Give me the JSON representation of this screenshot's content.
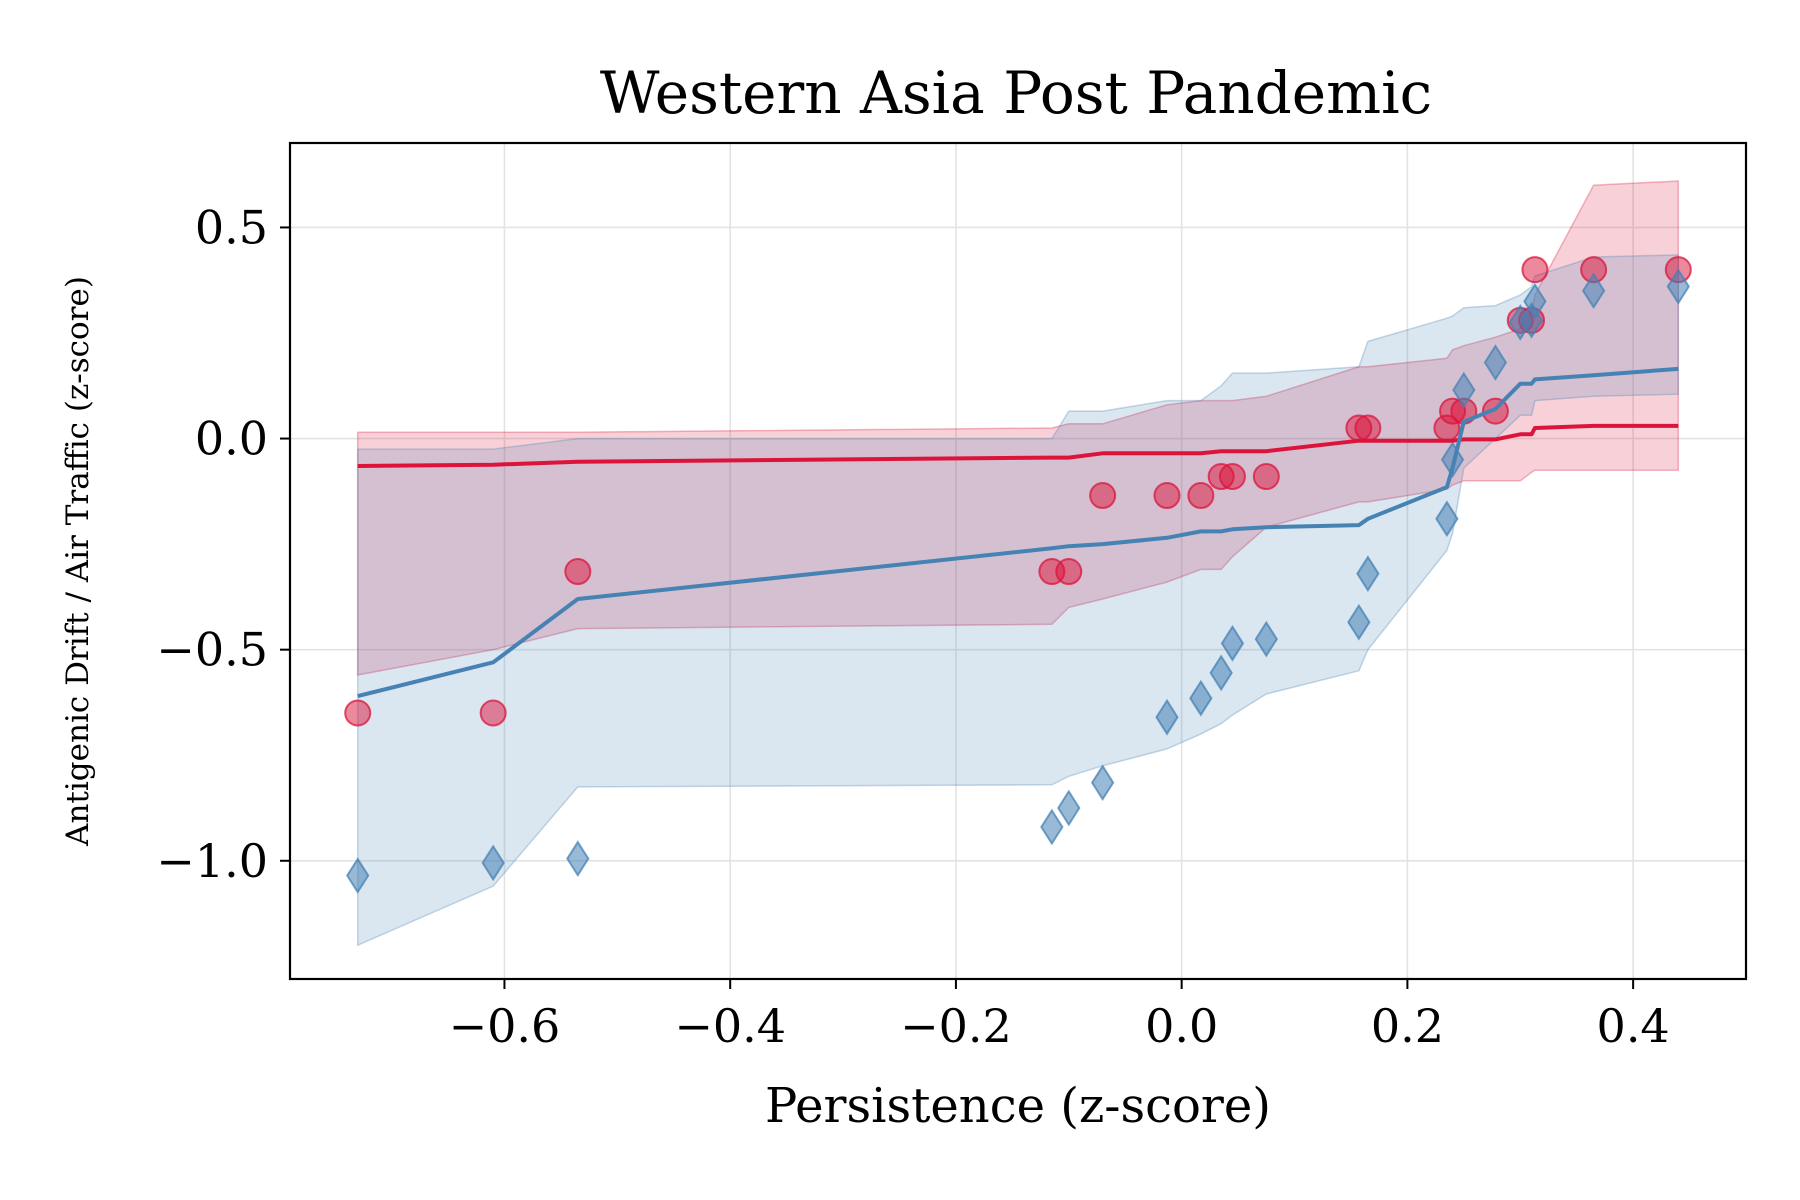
{
  "chart_data": {
    "type": "scatter",
    "title": "Western Asia Post Pandemic",
    "xlabel": "Persistence (z-score)",
    "ylabel": "Antigenic Drift / Air Traffic (z-score)",
    "xlim": [
      -0.79,
      0.5
    ],
    "ylim": [
      -1.28,
      0.7
    ],
    "xticks": [
      -0.6,
      -0.4,
      -0.2,
      0.0,
      0.2,
      0.4
    ],
    "xtick_labels": [
      "−0.6",
      "−0.4",
      "−0.2",
      "0.0",
      "0.2",
      "0.4"
    ],
    "yticks": [
      0.5,
      0.0,
      -0.5,
      -1.0
    ],
    "ytick_labels": [
      "0.5",
      "0.0",
      "−0.5",
      "−1.0"
    ],
    "grid": true,
    "series": [
      {
        "color": "#dc143c",
        "marker": "circle",
        "points": [
          [
            -0.73,
            -0.65
          ],
          [
            -0.61,
            -0.65
          ],
          [
            -0.535,
            -0.315
          ],
          [
            -0.115,
            -0.315
          ],
          [
            -0.1,
            -0.315
          ],
          [
            -0.07,
            -0.135
          ],
          [
            -0.013,
            -0.135
          ],
          [
            0.017,
            -0.135
          ],
          [
            0.035,
            -0.09
          ],
          [
            0.045,
            -0.09
          ],
          [
            0.075,
            -0.09
          ],
          [
            0.157,
            0.025
          ],
          [
            0.165,
            0.025
          ],
          [
            0.235,
            0.025
          ],
          [
            0.24,
            0.065
          ],
          [
            0.25,
            0.065
          ],
          [
            0.278,
            0.065
          ],
          [
            0.3,
            0.28
          ],
          [
            0.31,
            0.28
          ],
          [
            0.313,
            0.4
          ],
          [
            0.365,
            0.4
          ],
          [
            0.44,
            0.4
          ]
        ],
        "fit": [
          [
            -0.73,
            -0.065
          ],
          [
            -0.61,
            -0.062
          ],
          [
            -0.535,
            -0.055
          ],
          [
            -0.115,
            -0.045
          ],
          [
            -0.1,
            -0.045
          ],
          [
            -0.07,
            -0.035
          ],
          [
            -0.013,
            -0.035
          ],
          [
            0.017,
            -0.035
          ],
          [
            0.035,
            -0.03
          ],
          [
            0.045,
            -0.03
          ],
          [
            0.075,
            -0.03
          ],
          [
            0.157,
            -0.005
          ],
          [
            0.165,
            -0.005
          ],
          [
            0.235,
            -0.005
          ],
          [
            0.24,
            -0.005
          ],
          [
            0.25,
            -0.002
          ],
          [
            0.278,
            -0.002
          ],
          [
            0.3,
            0.01
          ],
          [
            0.31,
            0.01
          ],
          [
            0.313,
            0.025
          ],
          [
            0.365,
            0.03
          ],
          [
            0.44,
            0.03
          ]
        ],
        "band_upper": [
          [
            -0.73,
            0.015
          ],
          [
            -0.61,
            0.015
          ],
          [
            -0.535,
            0.015
          ],
          [
            -0.115,
            0.025
          ],
          [
            -0.1,
            0.035
          ],
          [
            -0.07,
            0.035
          ],
          [
            -0.013,
            0.08
          ],
          [
            0.017,
            0.09
          ],
          [
            0.035,
            0.09
          ],
          [
            0.045,
            0.09
          ],
          [
            0.075,
            0.1
          ],
          [
            0.157,
            0.17
          ],
          [
            0.165,
            0.17
          ],
          [
            0.235,
            0.19
          ],
          [
            0.24,
            0.21
          ],
          [
            0.25,
            0.22
          ],
          [
            0.278,
            0.24
          ],
          [
            0.3,
            0.26
          ],
          [
            0.31,
            0.3
          ],
          [
            0.313,
            0.34
          ],
          [
            0.365,
            0.6
          ],
          [
            0.44,
            0.61
          ]
        ],
        "band_lower": [
          [
            -0.73,
            -0.56
          ],
          [
            -0.61,
            -0.5
          ],
          [
            -0.535,
            -0.45
          ],
          [
            -0.115,
            -0.44
          ],
          [
            -0.1,
            -0.4
          ],
          [
            -0.07,
            -0.38
          ],
          [
            -0.013,
            -0.34
          ],
          [
            0.017,
            -0.31
          ],
          [
            0.035,
            -0.31
          ],
          [
            0.045,
            -0.28
          ],
          [
            0.075,
            -0.21
          ],
          [
            0.157,
            -0.15
          ],
          [
            0.165,
            -0.15
          ],
          [
            0.235,
            -0.12
          ],
          [
            0.24,
            -0.11
          ],
          [
            0.25,
            -0.1
          ],
          [
            0.278,
            -0.1
          ],
          [
            0.3,
            -0.1
          ],
          [
            0.31,
            -0.08
          ],
          [
            0.313,
            -0.075
          ],
          [
            0.365,
            -0.075
          ],
          [
            0.44,
            -0.075
          ]
        ]
      },
      {
        "color": "#4682b4",
        "marker": "diamond",
        "points": [
          [
            -0.73,
            -1.035
          ],
          [
            -0.61,
            -1.005
          ],
          [
            -0.535,
            -0.995
          ],
          [
            -0.115,
            -0.92
          ],
          [
            -0.1,
            -0.875
          ],
          [
            -0.07,
            -0.815
          ],
          [
            -0.013,
            -0.66
          ],
          [
            0.017,
            -0.615
          ],
          [
            0.035,
            -0.555
          ],
          [
            0.045,
            -0.485
          ],
          [
            0.075,
            -0.475
          ],
          [
            0.157,
            -0.435
          ],
          [
            0.165,
            -0.32
          ],
          [
            0.235,
            -0.19
          ],
          [
            0.24,
            -0.05
          ],
          [
            0.25,
            0.115
          ],
          [
            0.278,
            0.18
          ],
          [
            0.3,
            0.275
          ],
          [
            0.31,
            0.28
          ],
          [
            0.313,
            0.325
          ],
          [
            0.365,
            0.35
          ],
          [
            0.44,
            0.36
          ]
        ],
        "fit": [
          [
            -0.73,
            -0.61
          ],
          [
            -0.61,
            -0.53
          ],
          [
            -0.535,
            -0.38
          ],
          [
            -0.115,
            -0.26
          ],
          [
            -0.1,
            -0.255
          ],
          [
            -0.07,
            -0.25
          ],
          [
            -0.013,
            -0.235
          ],
          [
            0.017,
            -0.22
          ],
          [
            0.035,
            -0.22
          ],
          [
            0.045,
            -0.215
          ],
          [
            0.075,
            -0.21
          ],
          [
            0.157,
            -0.205
          ],
          [
            0.165,
            -0.19
          ],
          [
            0.235,
            -0.115
          ],
          [
            0.24,
            -0.07
          ],
          [
            0.25,
            0.04
          ],
          [
            0.278,
            0.07
          ],
          [
            0.3,
            0.13
          ],
          [
            0.31,
            0.13
          ],
          [
            0.313,
            0.14
          ],
          [
            0.365,
            0.15
          ],
          [
            0.44,
            0.165
          ]
        ],
        "band_upper": [
          [
            -0.73,
            -0.025
          ],
          [
            -0.61,
            -0.025
          ],
          [
            -0.535,
            0.0
          ],
          [
            -0.115,
            0.0
          ],
          [
            -0.1,
            0.065
          ],
          [
            -0.07,
            0.065
          ],
          [
            -0.013,
            0.09
          ],
          [
            0.017,
            0.09
          ],
          [
            0.035,
            0.125
          ],
          [
            0.045,
            0.155
          ],
          [
            0.075,
            0.155
          ],
          [
            0.157,
            0.17
          ],
          [
            0.165,
            0.23
          ],
          [
            0.235,
            0.285
          ],
          [
            0.24,
            0.29
          ],
          [
            0.25,
            0.31
          ],
          [
            0.278,
            0.315
          ],
          [
            0.3,
            0.34
          ],
          [
            0.31,
            0.36
          ],
          [
            0.313,
            0.385
          ],
          [
            0.365,
            0.43
          ],
          [
            0.44,
            0.435
          ]
        ],
        "band_lower": [
          [
            -0.73,
            -1.2
          ],
          [
            -0.61,
            -1.06
          ],
          [
            -0.535,
            -0.825
          ],
          [
            -0.115,
            -0.82
          ],
          [
            -0.1,
            -0.8
          ],
          [
            -0.07,
            -0.775
          ],
          [
            -0.013,
            -0.735
          ],
          [
            0.017,
            -0.7
          ],
          [
            0.035,
            -0.675
          ],
          [
            0.045,
            -0.655
          ],
          [
            0.075,
            -0.605
          ],
          [
            0.157,
            -0.55
          ],
          [
            0.165,
            -0.5
          ],
          [
            0.235,
            -0.265
          ],
          [
            0.24,
            -0.225
          ],
          [
            0.25,
            -0.07
          ],
          [
            0.278,
            0.0
          ],
          [
            0.3,
            0.055
          ],
          [
            0.31,
            0.055
          ],
          [
            0.313,
            0.09
          ],
          [
            0.365,
            0.1
          ],
          [
            0.44,
            0.105
          ]
        ]
      }
    ]
  }
}
